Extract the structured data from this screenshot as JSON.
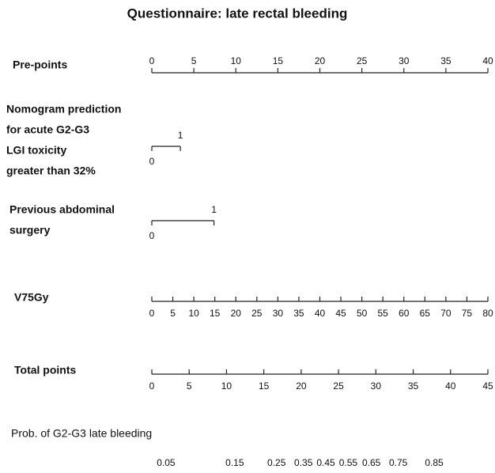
{
  "chart_data": {
    "type": "nomogram",
    "title": "Questionnaire: late rectal bleeding",
    "rows": [
      {
        "kind": "scale",
        "label": [
          "Pre-points"
        ],
        "lim": [
          0,
          40
        ],
        "ticks": [
          0,
          5,
          10,
          15,
          20,
          25,
          30,
          35,
          40
        ]
      },
      {
        "kind": "categorical",
        "label": [
          "Nomogram prediction",
          "for acute G2-G3",
          "LGI toxicity",
          "greater than 32%"
        ],
        "levels": [
          "0",
          "1"
        ],
        "points": [
          0,
          3.4
        ]
      },
      {
        "kind": "categorical",
        "label": [
          "Previous abdominal",
          "surgery"
        ],
        "levels": [
          "0",
          "1"
        ],
        "points": [
          0,
          7.4
        ]
      },
      {
        "kind": "scale",
        "label": [
          "V75Gy"
        ],
        "lim": [
          0,
          80
        ],
        "ticks": [
          0,
          5,
          10,
          15,
          20,
          25,
          30,
          35,
          40,
          45,
          50,
          55,
          60,
          65,
          70,
          75,
          80
        ]
      },
      {
        "kind": "scale",
        "label": [
          "Total points"
        ],
        "lim": [
          0,
          45
        ],
        "ticks": [
          0,
          5,
          10,
          15,
          20,
          25,
          30,
          35,
          40,
          45
        ]
      },
      {
        "kind": "probability",
        "label": [
          "Prob. of G2-G3 late bleeding"
        ],
        "lim": [
          0,
          45
        ],
        "ticks": [
          0.05,
          0.15,
          0.25,
          0.35,
          0.45,
          0.55,
          0.65,
          0.75,
          0.85
        ],
        "points": [
          1.9,
          11.1,
          16.7,
          20.3,
          23.3,
          26.3,
          29.4,
          33.0,
          37.8
        ]
      }
    ]
  }
}
